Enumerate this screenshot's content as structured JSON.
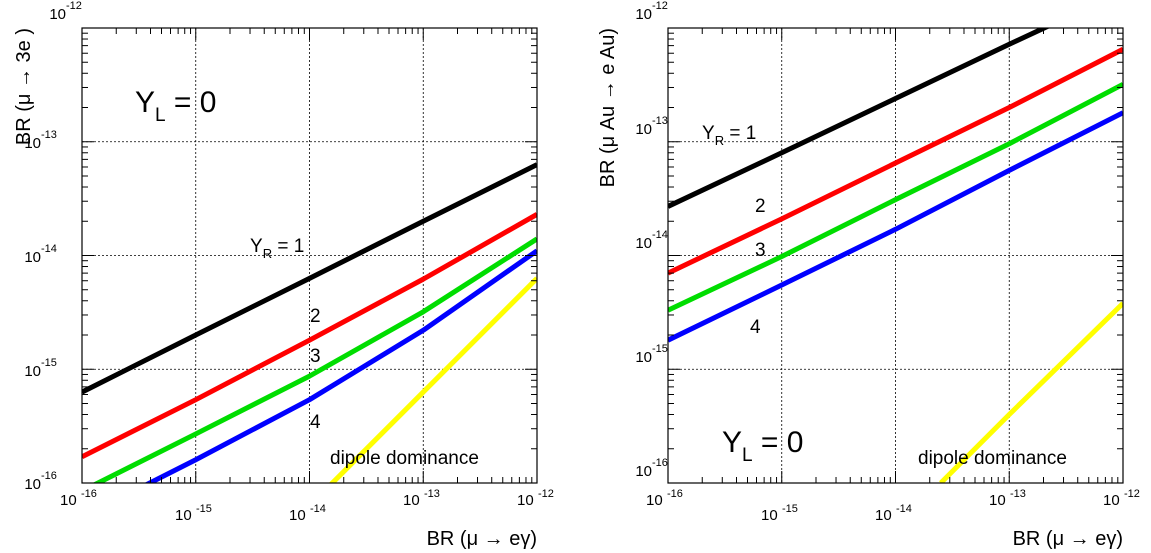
{
  "chart_data": [
    {
      "type": "line",
      "xlabel": "BR (μ → eγ)",
      "ylabel": "BR (μ → 3e )",
      "x_scale": "log",
      "y_scale": "log",
      "xlim": [
        1e-16,
        1e-12
      ],
      "ylim": [
        1e-16,
        1e-12
      ],
      "x_tick_bases": [
        "10",
        "10",
        "10",
        "10",
        "10"
      ],
      "x_tick_exponents": [
        "-16",
        "-15",
        "-14",
        "-13",
        "-12"
      ],
      "y_tick_bases": [
        "10",
        "10",
        "10",
        "10",
        "10"
      ],
      "y_tick_exponents": [
        "-16",
        "-15",
        "-14",
        "-13",
        "-12"
      ],
      "grid": true,
      "colors": {
        "YR=1": "#000000",
        "YR=2": "#ff0000",
        "YR=3": "#00dd00",
        "YR=4": "#0000ff",
        "dipole": "#ffff00"
      },
      "annotation_main": {
        "base": "Y",
        "sub": "L",
        "rest": " = 0"
      },
      "annotation_series": {
        "base": "Y",
        "sub": "R",
        "rest": " = 1"
      },
      "labels": [
        "2",
        "3",
        "4",
        "dipole dominance"
      ],
      "series": [
        {
          "key": "YR=1",
          "points": [
            [
              1e-16,
              6.3e-16
            ],
            [
              1e-15,
              2e-15
            ],
            [
              1e-14,
              6.3e-15
            ],
            [
              1e-13,
              2e-14
            ],
            [
              1e-12,
              6.3e-14
            ]
          ]
        },
        {
          "key": "YR=2",
          "points": [
            [
              1e-16,
              1.7e-16
            ],
            [
              1e-15,
              5.4e-16
            ],
            [
              1e-14,
              1.8e-15
            ],
            [
              1e-13,
              6.2e-15
            ],
            [
              1e-12,
              2.3e-14
            ]
          ]
        },
        {
          "key": "YR=3",
          "points": [
            [
              1e-16,
              8.5e-17
            ],
            [
              1e-15,
              2.7e-16
            ],
            [
              1e-14,
              8.7e-16
            ],
            [
              1e-13,
              3.2e-15
            ],
            [
              1e-12,
              1.4e-14
            ]
          ]
        },
        {
          "key": "YR=4",
          "points": [
            [
              1e-16,
              5e-17
            ],
            [
              1e-15,
              1.6e-16
            ],
            [
              1e-14,
              5.4e-16
            ],
            [
              1e-13,
              2.2e-15
            ],
            [
              1e-12,
              1.1e-14
            ]
          ]
        },
        {
          "key": "dipole",
          "points": [
            [
              1e-14,
              6.3e-17
            ],
            [
              1e-13,
              6.3e-16
            ],
            [
              1e-12,
              6.3e-15
            ]
          ]
        }
      ]
    },
    {
      "type": "line",
      "xlabel": "BR (μ → eγ)",
      "ylabel": "BR (μ Au → e Au)",
      "x_scale": "log",
      "y_scale": "log",
      "xlim": [
        1e-16,
        1e-12
      ],
      "ylim": [
        1e-16,
        1e-12
      ],
      "x_tick_bases": [
        "10",
        "10",
        "10",
        "10",
        "10"
      ],
      "x_tick_exponents": [
        "-16",
        "-15",
        "-14",
        "-13",
        "-12"
      ],
      "y_tick_bases": [
        "10",
        "10",
        "10",
        "10",
        "10"
      ],
      "y_tick_exponents": [
        "-16",
        "-15",
        "-14",
        "-13",
        "-12"
      ],
      "grid": true,
      "colors": {
        "YR=1": "#000000",
        "YR=2": "#ff0000",
        "YR=3": "#00dd00",
        "YR=4": "#0000ff",
        "dipole": "#ffff00"
      },
      "annotation_main": {
        "base": "Y",
        "sub": "L",
        "rest": " = 0"
      },
      "annotation_series": {
        "base": "Y",
        "sub": "R",
        "rest": " = 1"
      },
      "labels": [
        "2",
        "3",
        "4",
        "dipole dominance"
      ],
      "series": [
        {
          "key": "YR=1",
          "points": [
            [
              1e-16,
              2.7e-14
            ],
            [
              1e-15,
              8e-14
            ],
            [
              1e-14,
              2.4e-13
            ],
            [
              1e-13,
              7.2e-13
            ],
            [
              1e-12,
              2.1e-12
            ]
          ]
        },
        {
          "key": "YR=2",
          "points": [
            [
              1e-16,
              7e-15
            ],
            [
              1e-15,
              2.1e-14
            ],
            [
              1e-14,
              6.5e-14
            ],
            [
              1e-13,
              2e-13
            ],
            [
              1e-12,
              6.5e-13
            ]
          ]
        },
        {
          "key": "YR=3",
          "points": [
            [
              1e-16,
              3.3e-15
            ],
            [
              1e-15,
              9.8e-15
            ],
            [
              1e-14,
              3.1e-14
            ],
            [
              1e-13,
              9.6e-14
            ],
            [
              1e-12,
              3.2e-13
            ]
          ]
        },
        {
          "key": "YR=4",
          "points": [
            [
              1e-16,
              1.8e-15
            ],
            [
              1e-15,
              5.5e-15
            ],
            [
              1e-14,
              1.7e-14
            ],
            [
              1e-13,
              5.6e-14
            ],
            [
              1e-12,
              1.8e-13
            ]
          ]
        },
        {
          "key": "dipole",
          "points": [
            [
              2.5e-14,
              1e-16
            ],
            [
              1e-13,
              4e-16
            ],
            [
              1e-12,
              3.8e-15
            ]
          ]
        }
      ]
    }
  ]
}
